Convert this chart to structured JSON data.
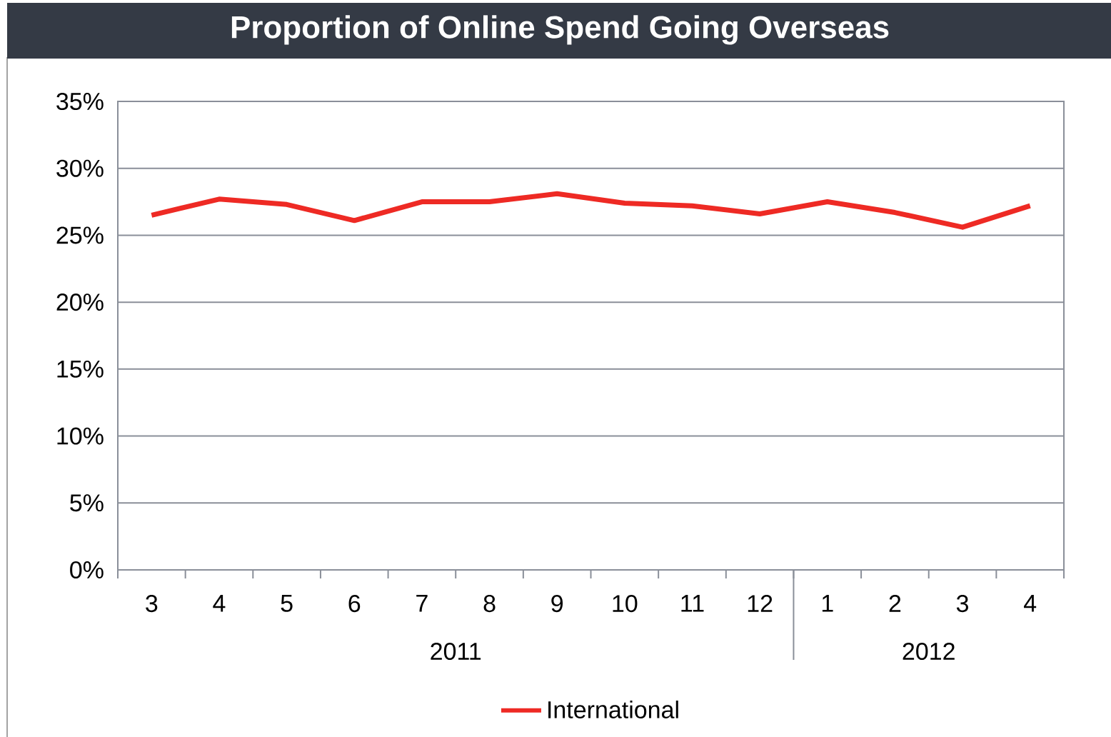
{
  "chart_data": {
    "type": "line",
    "title": "Proportion of Online Spend Going Overseas",
    "categories": [
      "3",
      "4",
      "5",
      "6",
      "7",
      "8",
      "9",
      "10",
      "11",
      "12",
      "1",
      "2",
      "3",
      "4"
    ],
    "series": [
      {
        "name": "International",
        "color": "#ee2a24",
        "values": [
          26.5,
          27.7,
          27.3,
          26.1,
          27.5,
          27.5,
          28.1,
          27.4,
          27.2,
          26.6,
          27.5,
          26.7,
          25.6,
          27.2
        ]
      }
    ],
    "ylim": [
      0,
      35
    ],
    "yticks": [
      {
        "value": 0,
        "label": "0%"
      },
      {
        "value": 5,
        "label": "5%"
      },
      {
        "value": 10,
        "label": "10%"
      },
      {
        "value": 15,
        "label": "15%"
      },
      {
        "value": 20,
        "label": "20%"
      },
      {
        "value": 25,
        "label": "25%"
      },
      {
        "value": 30,
        "label": "30%"
      },
      {
        "value": 35,
        "label": "35%"
      }
    ],
    "grid": "y",
    "legend": "bottom",
    "marker": "none",
    "line_style": "solid",
    "annotations": [
      "2011",
      "2012"
    ]
  }
}
